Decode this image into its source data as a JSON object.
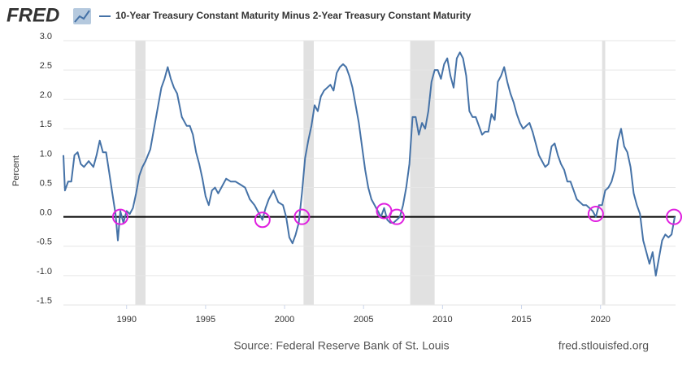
{
  "chart_data": {
    "type": "line",
    "logo": "FRED",
    "title": "10-Year Treasury Constant Maturity Minus 2-Year Treasury Constant Maturity",
    "y_label": "Percent",
    "source": "Source: Federal Reserve Bank of St. Louis",
    "site": "fred.stlouisfed.org",
    "xlim": [
      1986.0,
      2024.75
    ],
    "xticks": [
      1990,
      1995,
      2000,
      2005,
      2010,
      2015,
      2020
    ],
    "ylim": [
      -1.5,
      3.0
    ],
    "yticks": [
      {
        "value": 3.0,
        "label": "3.0"
      },
      2.5,
      {
        "value": 2.0,
        "label": "2.0"
      },
      1.5,
      {
        "value": 1.0,
        "label": "1.0"
      },
      0.5,
      {
        "value": 0.0,
        "label": "0.0"
      },
      -0.5,
      {
        "value": -1.0,
        "label": "-1.0"
      },
      -1.5
    ],
    "grid": true,
    "reference_line": 0,
    "recession_color": "#e1e1e1",
    "recessions": [
      [
        1990.55,
        1991.2
      ],
      [
        2001.2,
        2001.85
      ],
      [
        2007.95,
        2009.5
      ],
      [
        2020.1,
        2020.3
      ]
    ],
    "highlight_color": "#e020e0",
    "highlights": [
      {
        "x": 1989.6,
        "y": 0.0
      },
      {
        "x": 1998.6,
        "y": -0.05
      },
      {
        "x": 2001.1,
        "y": 0.0
      },
      {
        "x": 2006.3,
        "y": 0.1
      },
      {
        "x": 2007.1,
        "y": 0.0
      },
      {
        "x": 2019.7,
        "y": 0.05
      },
      {
        "x": 2024.65,
        "y": 0.0
      }
    ],
    "series": [
      {
        "name": "10-Year Treasury Constant Maturity Minus 2-Year Treasury Constant Maturity",
        "color": "#4572a7",
        "x": [
          1986.0,
          1986.1,
          1986.3,
          1986.5,
          1986.7,
          1986.9,
          1987.1,
          1987.3,
          1987.6,
          1987.9,
          1988.1,
          1988.3,
          1988.5,
          1988.7,
          1988.9,
          1989.1,
          1989.3,
          1989.45,
          1989.6,
          1989.8,
          1990.0,
          1990.2,
          1990.4,
          1990.6,
          1990.8,
          1991.0,
          1991.2,
          1991.5,
          1991.8,
          1992.0,
          1992.2,
          1992.4,
          1992.6,
          1992.8,
          1993.0,
          1993.2,
          1993.5,
          1993.8,
          1994.0,
          1994.2,
          1994.4,
          1994.6,
          1994.8,
          1995.0,
          1995.2,
          1995.4,
          1995.6,
          1995.8,
          1996.0,
          1996.3,
          1996.6,
          1996.9,
          1997.2,
          1997.5,
          1997.8,
          1998.1,
          1998.4,
          1998.6,
          1998.8,
          1999.0,
          1999.3,
          1999.6,
          1999.9,
          2000.1,
          2000.3,
          2000.5,
          2000.7,
          2000.9,
          2001.1,
          2001.3,
          2001.5,
          2001.7,
          2001.9,
          2002.1,
          2002.3,
          2002.5,
          2002.7,
          2002.9,
          2003.1,
          2003.3,
          2003.5,
          2003.7,
          2003.9,
          2004.1,
          2004.3,
          2004.5,
          2004.7,
          2004.9,
          2005.1,
          2005.3,
          2005.5,
          2005.7,
          2005.9,
          2006.1,
          2006.3,
          2006.5,
          2006.7,
          2006.9,
          2007.1,
          2007.3,
          2007.5,
          2007.7,
          2007.9,
          2008.1,
          2008.3,
          2008.5,
          2008.7,
          2008.9,
          2009.1,
          2009.3,
          2009.5,
          2009.7,
          2009.9,
          2010.1,
          2010.3,
          2010.5,
          2010.7,
          2010.9,
          2011.1,
          2011.3,
          2011.5,
          2011.7,
          2011.9,
          2012.1,
          2012.3,
          2012.5,
          2012.7,
          2012.9,
          2013.1,
          2013.3,
          2013.5,
          2013.7,
          2013.9,
          2014.1,
          2014.3,
          2014.5,
          2014.7,
          2014.9,
          2015.1,
          2015.3,
          2015.5,
          2015.7,
          2015.9,
          2016.1,
          2016.3,
          2016.5,
          2016.7,
          2016.9,
          2017.1,
          2017.3,
          2017.5,
          2017.7,
          2017.9,
          2018.1,
          2018.3,
          2018.5,
          2018.7,
          2018.9,
          2019.1,
          2019.3,
          2019.5,
          2019.7,
          2019.9,
          2020.1,
          2020.3,
          2020.5,
          2020.7,
          2020.9,
          2021.1,
          2021.3,
          2021.5,
          2021.7,
          2021.9,
          2022.1,
          2022.3,
          2022.5,
          2022.7,
          2022.9,
          2023.1,
          2023.3,
          2023.5,
          2023.7,
          2023.9,
          2024.1,
          2024.3,
          2024.5,
          2024.7
        ],
        "values": [
          1.05,
          0.45,
          0.6,
          0.6,
          1.05,
          1.1,
          0.9,
          0.85,
          0.95,
          0.85,
          1.05,
          1.3,
          1.1,
          1.1,
          0.75,
          0.4,
          0.05,
          -0.4,
          0.1,
          -0.1,
          0.1,
          0.05,
          0.15,
          0.4,
          0.7,
          0.85,
          0.95,
          1.15,
          1.6,
          1.9,
          2.2,
          2.35,
          2.55,
          2.35,
          2.2,
          2.1,
          1.7,
          1.55,
          1.55,
          1.4,
          1.1,
          0.9,
          0.65,
          0.35,
          0.2,
          0.45,
          0.5,
          0.4,
          0.5,
          0.65,
          0.6,
          0.6,
          0.55,
          0.5,
          0.3,
          0.2,
          0.05,
          -0.05,
          0.15,
          0.3,
          0.45,
          0.25,
          0.2,
          0.0,
          -0.35,
          -0.45,
          -0.3,
          -0.1,
          0.4,
          1.0,
          1.3,
          1.55,
          1.9,
          1.8,
          2.05,
          2.15,
          2.2,
          2.25,
          2.15,
          2.45,
          2.55,
          2.6,
          2.55,
          2.4,
          2.2,
          1.9,
          1.6,
          1.2,
          0.8,
          0.5,
          0.3,
          0.2,
          0.1,
          0.0,
          0.15,
          -0.05,
          -0.1,
          -0.1,
          -0.05,
          0.0,
          0.2,
          0.5,
          0.9,
          1.7,
          1.7,
          1.4,
          1.6,
          1.5,
          1.8,
          2.3,
          2.5,
          2.5,
          2.35,
          2.6,
          2.7,
          2.4,
          2.2,
          2.7,
          2.8,
          2.7,
          2.4,
          1.8,
          1.7,
          1.7,
          1.55,
          1.4,
          1.45,
          1.45,
          1.75,
          1.65,
          2.3,
          2.4,
          2.55,
          2.3,
          2.1,
          1.95,
          1.75,
          1.6,
          1.5,
          1.55,
          1.6,
          1.45,
          1.25,
          1.05,
          0.95,
          0.85,
          0.9,
          1.2,
          1.25,
          1.05,
          0.9,
          0.8,
          0.6,
          0.6,
          0.45,
          0.3,
          0.25,
          0.2,
          0.2,
          0.15,
          0.1,
          0.0,
          0.2,
          0.2,
          0.45,
          0.5,
          0.6,
          0.8,
          1.3,
          1.5,
          1.2,
          1.1,
          0.85,
          0.4,
          0.2,
          0.05,
          -0.4,
          -0.6,
          -0.8,
          -0.6,
          -1.0,
          -0.7,
          -0.4,
          -0.3,
          -0.35,
          -0.3,
          0.0
        ]
      }
    ]
  }
}
